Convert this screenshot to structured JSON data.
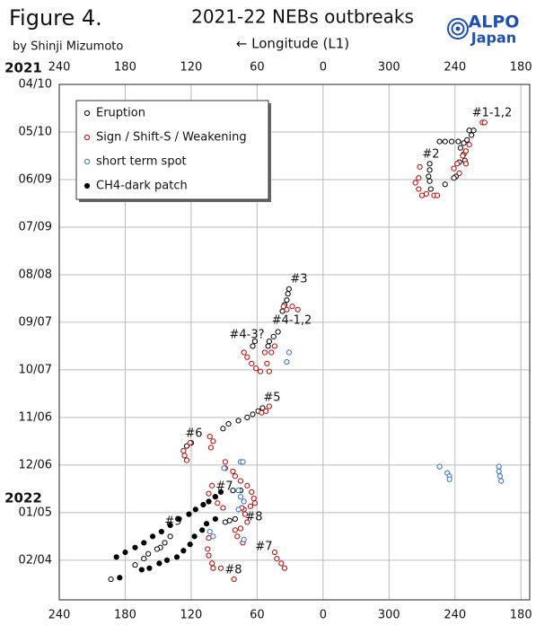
{
  "chart_data": {
    "type": "scatter",
    "figure_label": "Figure 4.",
    "title": "2021-22 NEBs outbreaks",
    "subtitle": "by Shinji Mizumoto",
    "xlabel": "← Longitude (L1)",
    "logo_text": [
      "ALPO",
      "Japan"
    ],
    "year_labels": [
      "2021",
      "2022"
    ],
    "xlim": [
      240,
      -188
    ],
    "xticks": [
      240,
      180,
      120,
      60,
      0,
      {
        "value": -60,
        "label": "300"
      },
      {
        "value": -120,
        "label": "240"
      },
      {
        "value": -180,
        "label": "180"
      }
    ],
    "ylim": [
      0,
      325
    ],
    "yticks": [
      {
        "value": 0,
        "label": "04/10"
      },
      {
        "value": 30,
        "label": "05/10"
      },
      {
        "value": 60,
        "label": "06/09"
      },
      {
        "value": 90,
        "label": "07/09"
      },
      {
        "value": 120,
        "label": "08/08"
      },
      {
        "value": 150,
        "label": "09/07"
      },
      {
        "value": 180,
        "label": "10/07"
      },
      {
        "value": 210,
        "label": "11/06"
      },
      {
        "value": 240,
        "label": "12/06"
      },
      {
        "value": 270,
        "label": "01/05"
      },
      {
        "value": 300,
        "label": "02/04"
      }
    ],
    "grid": true,
    "legend": "upper left",
    "series": [
      {
        "name": "Eruption",
        "color": "#000000",
        "filled": false,
        "x": [
          -133,
          -137,
          -135,
          -131,
          -128,
          -123,
          -117,
          -111,
          -106,
          -125,
          -128,
          -129,
          -124,
          -121,
          -119,
          -97,
          -97,
          -96,
          -97,
          -98,
          -111,
          31,
          32,
          33,
          35,
          37,
          41,
          45,
          49,
          50,
          62,
          64,
          55,
          59,
          64,
          69,
          77,
          86,
          91,
          120,
          124,
          82,
          75,
          89,
          85,
          80,
          139,
          144,
          148,
          151,
          159,
          163,
          171,
          193
        ],
        "y": [
          29,
          29,
          32,
          35,
          37,
          36,
          36,
          36,
          36,
          40,
          44,
          48,
          49,
          58,
          59,
          50,
          54,
          58,
          61,
          66,
          63,
          129,
          132,
          136,
          139,
          143,
          156,
          159,
          162,
          165,
          162,
          165,
          204,
          206,
          208,
          210,
          212,
          214,
          217,
          226,
          228,
          256,
          256,
          276,
          275,
          274,
          285,
          289,
          292,
          293,
          296,
          299,
          303,
          312
        ]
      },
      {
        "name": "Sign / Shift-S / Weakening",
        "color": "#c00000",
        "filled": false,
        "x": [
          -145,
          -147,
          -133,
          -130,
          -127,
          -130,
          -122,
          -119,
          -124,
          -88,
          -87,
          -84,
          -87,
          -90,
          -94,
          -101,
          -104,
          36,
          33,
          28,
          23,
          72,
          69,
          65,
          61,
          57,
          49,
          51,
          53,
          47,
          44,
          49,
          52,
          56,
          127,
          126,
          124,
          121,
          103,
          100,
          102,
          89,
          89,
          82,
          80,
          75,
          69,
          65,
          63,
          62,
          66,
          72,
          101,
          104,
          98,
          96,
          91,
          74,
          71,
          69,
          75,
          104,
          105,
          104,
          101,
          100,
          93,
          80,
          78,
          73,
          44,
          42,
          38,
          35,
          81
        ],
        "y": [
          24,
          24,
          38,
          42,
          45,
          50,
          50,
          53,
          56,
          52,
          59,
          62,
          66,
          70,
          69,
          70,
          70,
          140,
          142,
          140,
          142,
          169,
          172,
          176,
          179,
          181,
          181,
          176,
          169,
          169,
          165,
          203,
          206,
          207,
          231,
          234,
          237,
          226,
          222,
          225,
          229,
          238,
          242,
          244,
          247,
          250,
          253,
          257,
          261,
          264,
          266,
          268,
          253,
          258,
          260,
          264,
          267,
          267,
          271,
          276,
          280,
          286,
          293,
          297,
          302,
          305,
          305,
          281,
          285,
          289,
          295,
          299,
          302,
          305,
          312
        ]
      },
      {
        "name": "short term spot",
        "color": "#2f6fd0",
        "filled": false,
        "x": [
          31,
          33,
          75,
          73,
          90,
          77,
          75,
          72,
          77,
          103,
          100,
          72,
          -106,
          -113,
          -115,
          -115,
          -160,
          -160,
          -161,
          -162
        ],
        "y": [
          169,
          175,
          238,
          238,
          242,
          256,
          260,
          263,
          268,
          282,
          285,
          287,
          241,
          245,
          247,
          249,
          241,
          244,
          247,
          250
        ]
      },
      {
        "name": "CH4-dark patch",
        "color": "#000000",
        "filled": true,
        "x": [
          185,
          165,
          158,
          149,
          142,
          133,
          127,
          121,
          117,
          110,
          106,
          98,
          188,
          180,
          171,
          163,
          155,
          147,
          139,
          131,
          122,
          116,
          109,
          104,
          98,
          93
        ],
        "y": [
          311,
          306,
          305,
          302,
          300,
          298,
          294,
          290,
          285,
          281,
          277,
          274,
          298,
          295,
          292,
          289,
          285,
          282,
          278,
          274,
          271,
          268,
          265,
          263,
          260,
          257
        ]
      }
    ],
    "annotations": [
      "#1-1,2",
      "#2",
      "#3",
      "#4-1,2",
      "#4-3?",
      "#5",
      "#6",
      "#7",
      "#9",
      "#8",
      "#7",
      "#8"
    ]
  }
}
